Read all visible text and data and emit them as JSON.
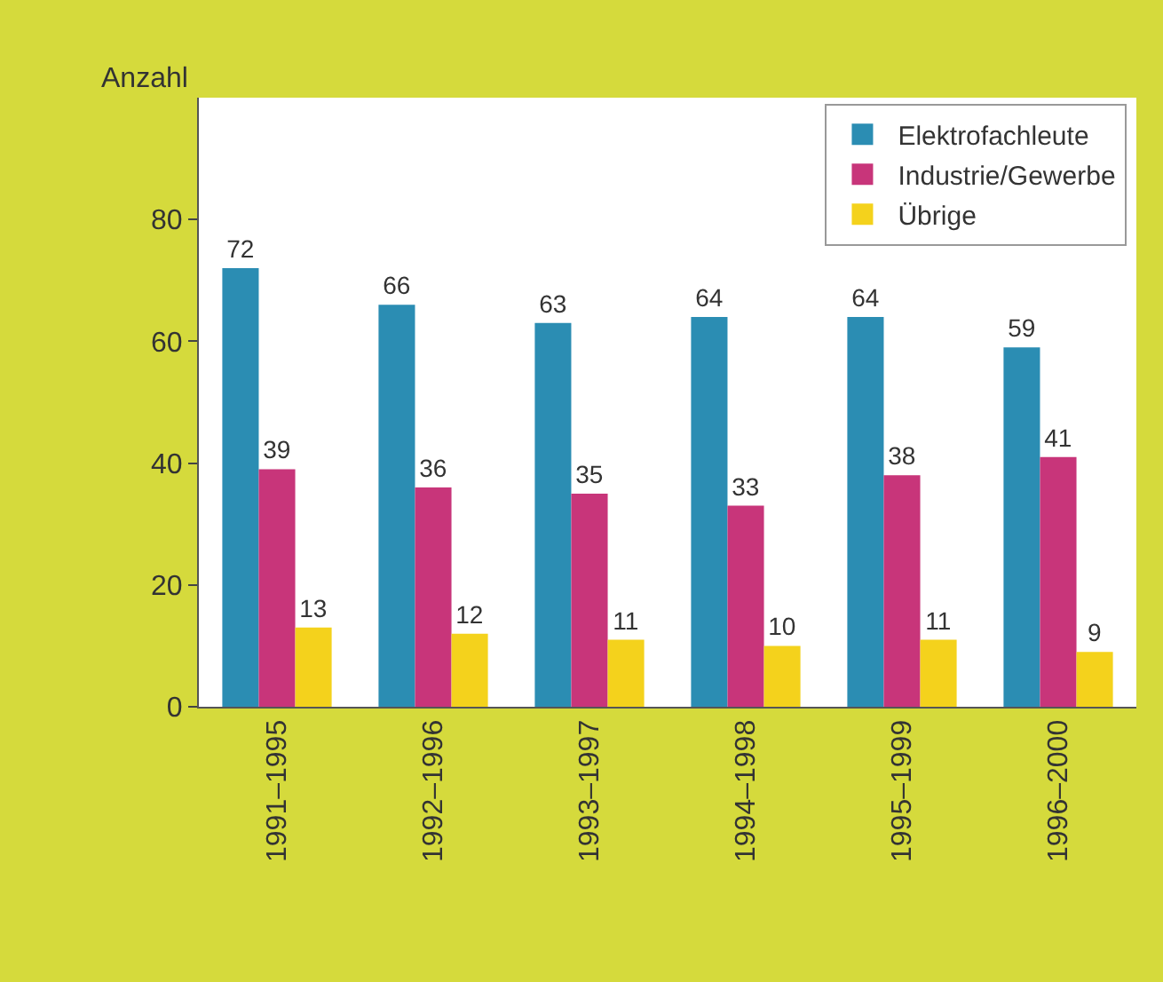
{
  "chart_data": {
    "type": "bar",
    "ylabel": "Anzahl",
    "categories": [
      "1991–1995",
      "1992–1996",
      "1993–1997",
      "1994–1998",
      "1995–1999",
      "1996–2000"
    ],
    "series": [
      {
        "name": "Elektrofachleute",
        "color": "#2b8db3",
        "values": [
          72,
          66,
          63,
          64,
          64,
          59
        ]
      },
      {
        "name": "Industrie/Gewerbe",
        "color": "#c8357a",
        "values": [
          39,
          36,
          35,
          33,
          38,
          41
        ]
      },
      {
        "name": "Übrige",
        "color": "#f4d21c",
        "values": [
          13,
          12,
          11,
          10,
          11,
          9
        ]
      }
    ],
    "ylim": [
      0,
      100
    ],
    "yticks": [
      0,
      20,
      40,
      60,
      80
    ],
    "legend": "top right",
    "data_labels": true
  }
}
